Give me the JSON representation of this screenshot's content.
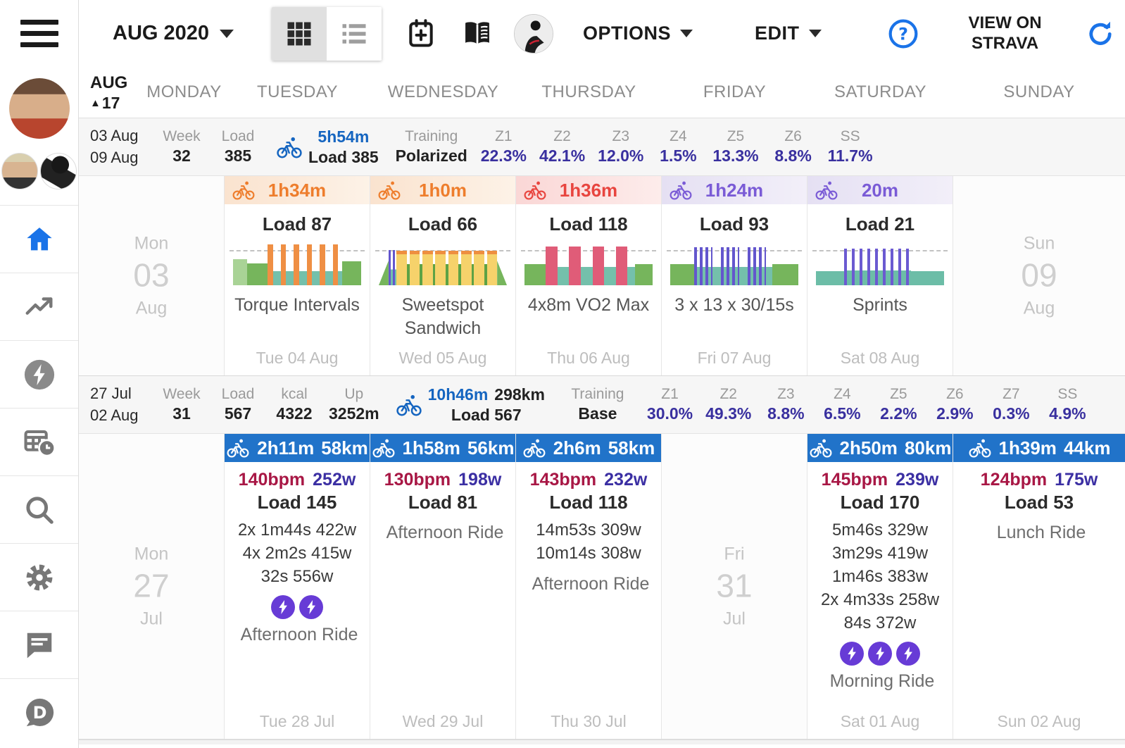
{
  "colors": {
    "accent_blue": "#2173c9",
    "planned_orange": "#ee7d2c",
    "planned_red": "#e8453f",
    "planned_purple": "#7a5bd6",
    "heartrate_red": "#a81745",
    "power_indigo": "#3b2fa3",
    "zone_indigo": "#39309f",
    "time_blue": "#1565c0",
    "badge_purple": "#673bd6",
    "link_blue": "#1a73e8"
  },
  "icons": {
    "hamburger-icon": "≡",
    "caret-down-icon": "▼",
    "grid-view-icon": "▦",
    "list-view-icon": "☷",
    "calendar-add-icon": "📅+",
    "book-icon": "📖",
    "cyclist-avatar-icon": "🚴",
    "help-icon": "?",
    "refresh-icon": "⟳",
    "week-collapse-icon": "▲",
    "bike-icon": "🚴",
    "home-icon": "⌂",
    "trending-icon": "↗",
    "lightning-icon": "⚡",
    "plan-icon": "🗓",
    "search-icon": "🔍",
    "gear-icon": "⚙",
    "chat-icon": "💬",
    "disqus-icon": "D",
    "bolt-icon": "⚡"
  },
  "topbar": {
    "month_label": "AUG 2020",
    "options_label": "OPTIONS",
    "edit_label": "EDIT",
    "strava_label": "VIEW ON STRAVA"
  },
  "sidebar": {
    "items": [
      {
        "name": "home",
        "icon": "home-icon",
        "active": true
      },
      {
        "name": "trends",
        "icon": "trending-icon"
      },
      {
        "name": "power",
        "icon": "lightning-icon"
      },
      {
        "name": "plan",
        "icon": "plan-icon"
      },
      {
        "name": "search",
        "icon": "search-icon"
      },
      {
        "name": "settings",
        "icon": "gear-icon"
      },
      {
        "name": "chat",
        "icon": "chat-icon"
      },
      {
        "name": "disqus",
        "icon": "disqus-icon"
      }
    ]
  },
  "calendar": {
    "corner": {
      "month": "AUG",
      "week": "17"
    },
    "weekdays": [
      "MONDAY",
      "TUESDAY",
      "WEDNESDAY",
      "THURSDAY",
      "FRIDAY",
      "SATURDAY",
      "SUNDAY"
    ],
    "weeks": [
      {
        "summary": {
          "range": [
            "03 Aug",
            "09 Aug"
          ],
          "stats": [
            {
              "label": "Week",
              "value": "32"
            },
            {
              "label": "Load",
              "value": "385"
            }
          ],
          "ride": {
            "time": "5h54m",
            "distance": "",
            "load": "Load 385"
          },
          "training": {
            "label": "Training",
            "value": "Polarized"
          },
          "zones": [
            [
              "Z1",
              "22.3%"
            ],
            [
              "Z2",
              "42.1%"
            ],
            [
              "Z3",
              "12.0%"
            ],
            [
              "Z4",
              "1.5%"
            ],
            [
              "Z5",
              "13.3%"
            ],
            [
              "Z6",
              "8.8%"
            ],
            [
              "SS",
              "11.7%"
            ]
          ]
        },
        "days": [
          {
            "type": "empty",
            "weekday": "Mon",
            "day": "03",
            "month": "Aug"
          },
          {
            "type": "planned",
            "theme": "orange",
            "duration": "1h34m",
            "load": "Load 87",
            "name": "Torque Intervals",
            "date": "Tue 04 Aug",
            "profile": [
              [
                "lg",
                62,
                9
              ],
              [
                "g",
                52,
                13
              ],
              [
                "o",
                96,
                3.4
              ],
              [
                "t",
                34,
                4.8
              ],
              [
                "o",
                96,
                3.4
              ],
              [
                "t",
                34,
                4.8
              ],
              [
                "o",
                96,
                3.4
              ],
              [
                "t",
                34,
                4.8
              ],
              [
                "o",
                96,
                3.4
              ],
              [
                "t",
                34,
                4.8
              ],
              [
                "o",
                96,
                3.4
              ],
              [
                "t",
                34,
                4.8
              ],
              [
                "o",
                96,
                3.4
              ],
              [
                "t",
                34,
                2.6
              ],
              [
                "g",
                56,
                12
              ]
            ]
          },
          {
            "type": "planned",
            "theme": "orange",
            "duration": "1h0m",
            "load": "Load 66",
            "name": "Sweetspot Sandwich",
            "date": "Wed 05 Aug",
            "profile": [
              [
                "gu",
                58,
                6
              ],
              [
                "vs",
                84,
                5
              ],
              [
                "y",
                82,
                6.3
              ],
              [
                "gn",
                50,
                1.6
              ],
              [
                "y",
                82,
                6.3
              ],
              [
                "gn",
                50,
                1.6
              ],
              [
                "y",
                82,
                6.3
              ],
              [
                "gn",
                50,
                1.6
              ],
              [
                "y",
                82,
                6.3
              ],
              [
                "gn",
                50,
                1.6
              ],
              [
                "y",
                82,
                6.3
              ],
              [
                "gn",
                50,
                1.6
              ],
              [
                "y",
                82,
                6.3
              ],
              [
                "gn",
                50,
                1.6
              ],
              [
                "y",
                82,
                6.3
              ],
              [
                "gn",
                50,
                1.6
              ],
              [
                "y",
                82,
                6.3
              ],
              [
                "gd",
                58,
                6
              ]
            ]
          },
          {
            "type": "planned",
            "theme": "red",
            "duration": "1h36m",
            "load": "Load 118",
            "name": "4x8m VO2 Max",
            "date": "Thu 06 Aug",
            "profile": [
              [
                "g",
                50,
                11
              ],
              [
                "p",
                92,
                6
              ],
              [
                "t",
                44,
                6
              ],
              [
                "p",
                92,
                6
              ],
              [
                "t",
                44,
                6
              ],
              [
                "p",
                92,
                6
              ],
              [
                "t",
                44,
                6
              ],
              [
                "p",
                92,
                6
              ],
              [
                "t",
                44,
                4
              ],
              [
                "g",
                50,
                9
              ]
            ]
          },
          {
            "type": "planned",
            "theme": "purple",
            "duration": "1h24m",
            "load": "Load 93",
            "name": "3 x 13 x 30/15s",
            "date": "Fri 07 Aug",
            "profile": [
              [
                "g",
                50,
                11
              ],
              [
                "vs2",
                90,
                8.5
              ],
              [
                "t",
                44,
                4
              ],
              [
                "vs2",
                90,
                8.5
              ],
              [
                "t",
                44,
                4
              ],
              [
                "vs2",
                90,
                8.5
              ],
              [
                "t",
                44,
                3
              ],
              [
                "g",
                50,
                12
              ]
            ]
          },
          {
            "type": "planned",
            "theme": "purple",
            "duration": "20m",
            "load": "Load 21",
            "name": "Sprints",
            "date": "Sat 08 Aug",
            "profile": [
              [
                "st",
                34,
                11
              ],
              [
                "sv",
                86,
                26
              ],
              [
                "st",
                34,
                13
              ]
            ]
          },
          {
            "type": "empty",
            "weekday": "Sun",
            "day": "09",
            "month": "Aug"
          }
        ]
      },
      {
        "summary": {
          "range": [
            "27 Jul",
            "02 Aug"
          ],
          "stats": [
            {
              "label": "Week",
              "value": "31"
            },
            {
              "label": "Load",
              "value": "567"
            },
            {
              "label": "kcal",
              "value": "4322"
            },
            {
              "label": "Up",
              "value": "3252m"
            }
          ],
          "ride": {
            "time": "10h46m",
            "distance": "298km",
            "load": "Load 567"
          },
          "training": {
            "label": "Training",
            "value": "Base"
          },
          "zones": [
            [
              "Z1",
              "30.0%"
            ],
            [
              "Z2",
              "49.3%"
            ],
            [
              "Z3",
              "8.8%"
            ],
            [
              "Z4",
              "6.5%"
            ],
            [
              "Z5",
              "2.2%"
            ],
            [
              "Z6",
              "2.9%"
            ],
            [
              "Z7",
              "0.3%"
            ],
            [
              "SS",
              "4.9%"
            ]
          ]
        },
        "days": [
          {
            "type": "empty",
            "weekday": "Mon",
            "day": "27",
            "month": "Jul"
          },
          {
            "type": "completed",
            "duration": "2h11m",
            "distance": "58km",
            "bpm": "140bpm",
            "power": "252w",
            "load": "Load 145",
            "intervals": [
              "2x 1m44s 422w",
              "4x 2m2s 415w",
              "32s 556w"
            ],
            "badges": 2,
            "name": "Afternoon Ride",
            "date": "Tue 28 Jul"
          },
          {
            "type": "completed",
            "duration": "1h58m",
            "distance": "56km",
            "bpm": "130bpm",
            "power": "198w",
            "load": "Load 81",
            "intervals": [],
            "badges": 0,
            "name": "Afternoon Ride",
            "date": "Wed 29 Jul"
          },
          {
            "type": "completed",
            "duration": "2h6m",
            "distance": "58km",
            "bpm": "143bpm",
            "power": "232w",
            "load": "Load 118",
            "intervals": [
              "14m53s 309w",
              "10m14s 308w"
            ],
            "badges": 0,
            "name": "Afternoon Ride",
            "date": "Thu 30 Jul"
          },
          {
            "type": "empty",
            "weekday": "Fri",
            "day": "31",
            "month": "Jul"
          },
          {
            "type": "completed",
            "duration": "2h50m",
            "distance": "80km",
            "bpm": "145bpm",
            "power": "239w",
            "load": "Load 170",
            "intervals": [
              "5m46s 329w",
              "3m29s 419w",
              "1m46s 383w",
              "2x 4m33s 258w",
              "84s 372w"
            ],
            "badges": 3,
            "name": "Morning Ride",
            "date": "Sat 01 Aug"
          },
          {
            "type": "completed",
            "duration": "1h39m",
            "distance": "44km",
            "bpm": "124bpm",
            "power": "175w",
            "load": "Load 53",
            "intervals": [],
            "badges": 0,
            "name": "Lunch Ride",
            "date": "Sun 02 Aug"
          }
        ]
      }
    ]
  }
}
